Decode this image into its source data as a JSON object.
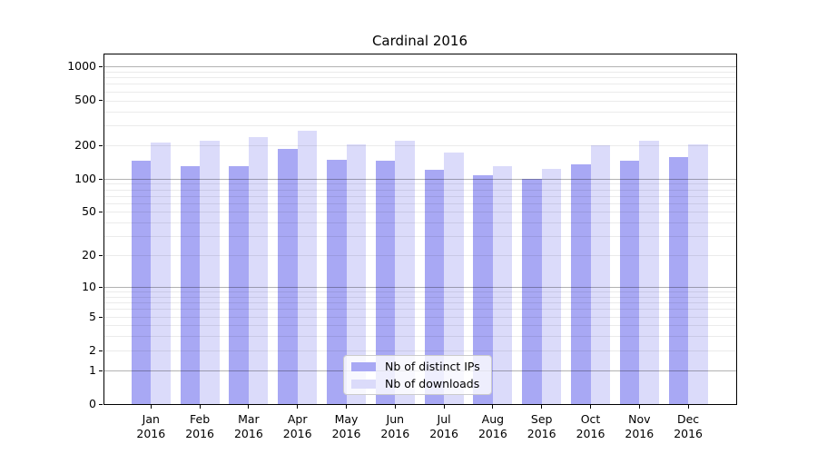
{
  "title": "Cardinal 2016",
  "legend": {
    "items": [
      {
        "label": "Nb of distinct IPs",
        "color": "#a8a8f4"
      },
      {
        "label": "Nb of downloads",
        "color": "#dbdbfa"
      }
    ]
  },
  "chart_data": {
    "type": "bar",
    "title": "Cardinal 2016",
    "xlabel": "",
    "ylabel": "",
    "yscale": "log1p",
    "grid": "on",
    "legend_position": "lower-center",
    "year": "2016",
    "months": [
      "Jan",
      "Feb",
      "Mar",
      "Apr",
      "May",
      "Jun",
      "Jul",
      "Aug",
      "Sep",
      "Oct",
      "Nov",
      "Dec"
    ],
    "categories": [
      "Jan 2016",
      "Feb 2016",
      "Mar 2016",
      "Apr 2016",
      "May 2016",
      "Jun 2016",
      "Jul 2016",
      "Aug 2016",
      "Sep 2016",
      "Oct 2016",
      "Nov 2016",
      "Dec 2016"
    ],
    "series": [
      {
        "name": "Nb of distinct IPs",
        "color": "#a8a8f4",
        "values": [
          145,
          129,
          130,
          186,
          146,
          145,
          120,
          108,
          100,
          134,
          144,
          155
        ]
      },
      {
        "name": "Nb of downloads",
        "color": "#dbdbfa",
        "values": [
          209,
          218,
          236,
          266,
          201,
          217,
          171,
          128,
          122,
          198,
          218,
          201
        ]
      }
    ],
    "yticks": [
      {
        "label": "1000",
        "value": 1000
      },
      {
        "label": "500",
        "value": 500
      },
      {
        "label": "200",
        "value": 200
      },
      {
        "label": "100",
        "value": 100
      },
      {
        "label": "50",
        "value": 50
      },
      {
        "label": "20",
        "value": 20
      },
      {
        "label": "10",
        "value": 10
      },
      {
        "label": "5",
        "value": 5
      },
      {
        "label": "2",
        "value": 2
      },
      {
        "label": "1",
        "value": 1
      },
      {
        "label": "0",
        "value": 0
      }
    ],
    "ylim": [
      0,
      1230
    ]
  }
}
